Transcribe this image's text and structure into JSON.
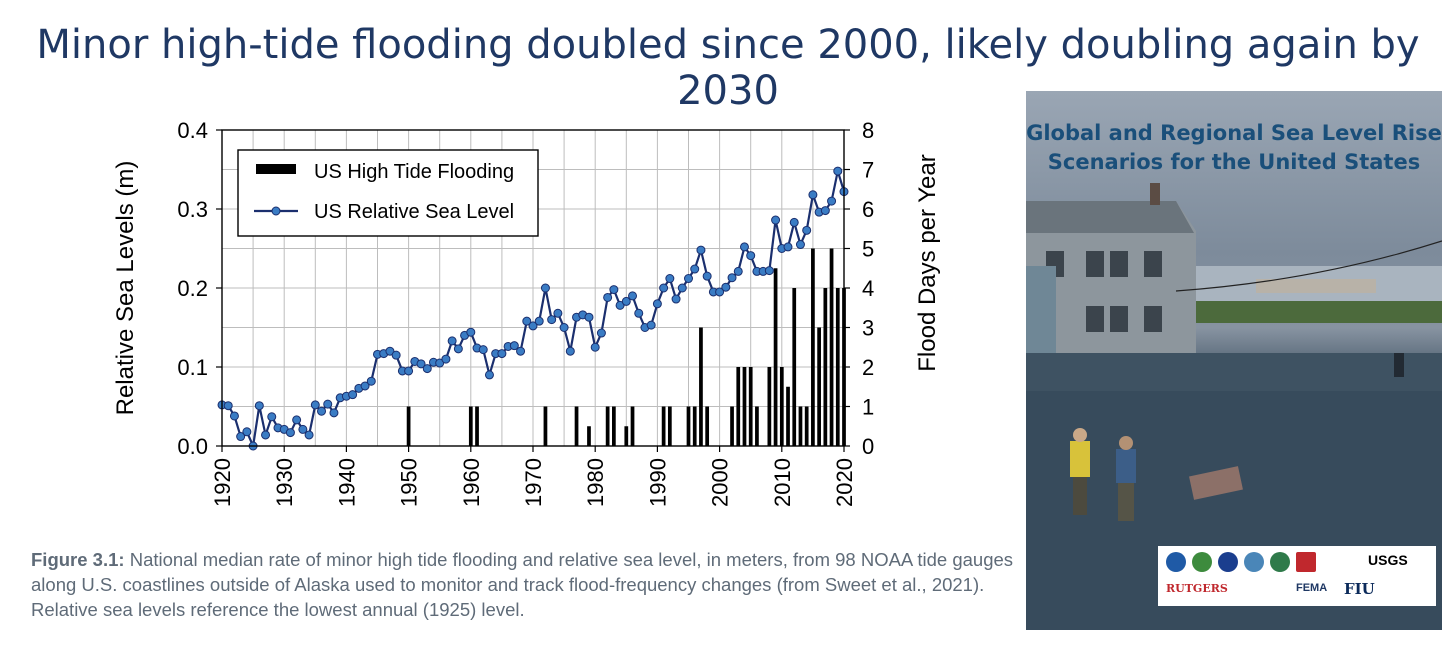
{
  "headline": "Minor high-tide flooding doubled since 2000, likely doubling again by 2030",
  "chart_data": {
    "type": "bar+line",
    "title": "",
    "xlabel": "",
    "ylabel": "Relative Sea Levels (m)",
    "y2label": "Flood Days per Year",
    "xlim": [
      1920,
      2020
    ],
    "ylim": [
      0.0,
      0.4
    ],
    "y2lim": [
      0,
      8
    ],
    "x_ticks": [
      "1920",
      "1930",
      "1940",
      "1950",
      "1960",
      "1970",
      "1980",
      "1990",
      "2000",
      "2010",
      "2020"
    ],
    "y_ticks": [
      "0.0",
      "0.1",
      "0.2",
      "0.3",
      "0.4"
    ],
    "y2_ticks": [
      "0",
      "1",
      "2",
      "3",
      "4",
      "5",
      "6",
      "7",
      "8"
    ],
    "grid": true,
    "legend_position": "top-left",
    "series": [
      {
        "name": "US High Tide Flooding",
        "type": "bar",
        "axis": "right",
        "color": "#000000",
        "x": [
          1950,
          1960,
          1961,
          1972,
          1977,
          1979,
          1982,
          1983,
          1985,
          1986,
          1991,
          1992,
          1995,
          1996,
          1997,
          1998,
          2002,
          2003,
          2004,
          2005,
          2006,
          2008,
          2009,
          2010,
          2011,
          2012,
          2013,
          2014,
          2015,
          2016,
          2017,
          2018,
          2019,
          2020
        ],
        "values": [
          1,
          1,
          1,
          1,
          1,
          0.5,
          1,
          1,
          0.5,
          1,
          1,
          1,
          1,
          1,
          3,
          1,
          1,
          2,
          2,
          2,
          1,
          2,
          4.5,
          2,
          1.5,
          4,
          1,
          1,
          5,
          3,
          4,
          5,
          4,
          4
        ]
      },
      {
        "name": "US Relative Sea Level",
        "type": "line",
        "axis": "left",
        "color": "#1b2f6e",
        "marker_color": "#3a7cc4",
        "x": [
          1920,
          1921,
          1922,
          1923,
          1924,
          1925,
          1926,
          1927,
          1928,
          1929,
          1930,
          1931,
          1932,
          1933,
          1934,
          1935,
          1936,
          1937,
          1938,
          1939,
          1940,
          1941,
          1942,
          1943,
          1944,
          1945,
          1946,
          1947,
          1948,
          1949,
          1950,
          1951,
          1952,
          1953,
          1954,
          1955,
          1956,
          1957,
          1958,
          1959,
          1960,
          1961,
          1962,
          1963,
          1964,
          1965,
          1966,
          1967,
          1968,
          1969,
          1970,
          1971,
          1972,
          1973,
          1974,
          1975,
          1976,
          1977,
          1978,
          1979,
          1980,
          1981,
          1982,
          1983,
          1984,
          1985,
          1986,
          1987,
          1988,
          1989,
          1990,
          1991,
          1992,
          1993,
          1994,
          1995,
          1996,
          1997,
          1998,
          1999,
          2000,
          2001,
          2002,
          2003,
          2004,
          2005,
          2006,
          2007,
          2008,
          2009,
          2010,
          2011,
          2012,
          2013,
          2014,
          2015,
          2016,
          2017,
          2018,
          2019,
          2020
        ],
        "values": [
          0.052,
          0.051,
          0.038,
          0.012,
          0.018,
          0.0,
          0.051,
          0.014,
          0.037,
          0.023,
          0.021,
          0.017,
          0.033,
          0.021,
          0.014,
          0.052,
          0.044,
          0.053,
          0.042,
          0.061,
          0.063,
          0.065,
          0.073,
          0.076,
          0.082,
          0.116,
          0.117,
          0.12,
          0.115,
          0.095,
          0.095,
          0.107,
          0.104,
          0.098,
          0.106,
          0.105,
          0.11,
          0.133,
          0.123,
          0.14,
          0.144,
          0.124,
          0.122,
          0.09,
          0.117,
          0.117,
          0.126,
          0.127,
          0.12,
          0.158,
          0.152,
          0.158,
          0.2,
          0.16,
          0.168,
          0.15,
          0.12,
          0.163,
          0.166,
          0.163,
          0.125,
          0.143,
          0.188,
          0.198,
          0.178,
          0.183,
          0.19,
          0.168,
          0.15,
          0.153,
          0.18,
          0.2,
          0.212,
          0.186,
          0.2,
          0.212,
          0.224,
          0.248,
          0.215,
          0.195,
          0.195,
          0.201,
          0.213,
          0.221,
          0.252,
          0.241,
          0.221,
          0.221,
          0.222,
          0.286,
          0.25,
          0.252,
          0.283,
          0.255,
          0.273,
          0.318,
          0.296,
          0.298,
          0.31,
          0.348,
          0.322
        ]
      }
    ]
  },
  "caption": {
    "label": "Figure 3.1:",
    "text": " National median rate of minor high tide flooding and relative sea level, in meters, from 98 NOAA tide gauges along U.S. coastlines outside of Alaska used to monitor and track flood-frequency changes (from Sweet et al., 2021). Relative sea levels reference the lowest annual (1925) level."
  },
  "cover": {
    "title_line1": "Global and Regional Sea Level Rise",
    "title_line2": "Scenarios for the United States",
    "logos": [
      "USGS",
      "RUTGERS",
      "FEMA",
      "FIU"
    ]
  }
}
